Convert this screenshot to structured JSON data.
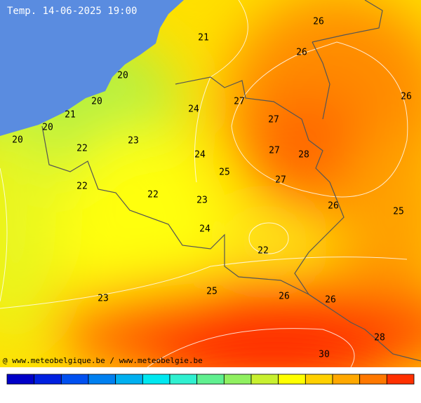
{
  "title": "Temp. 14-06-2025 19:00",
  "credit": "@ www.meteobelgique.be / www.meteobelgie.be",
  "labels": [
    26,
    21,
    26,
    20,
    26,
    20,
    27,
    24,
    21,
    27,
    20,
    20,
    23,
    22,
    27,
    28,
    24,
    25,
    27,
    22,
    22,
    23,
    26,
    25,
    24,
    22,
    25,
    26,
    23,
    26,
    28,
    30
  ]
}
